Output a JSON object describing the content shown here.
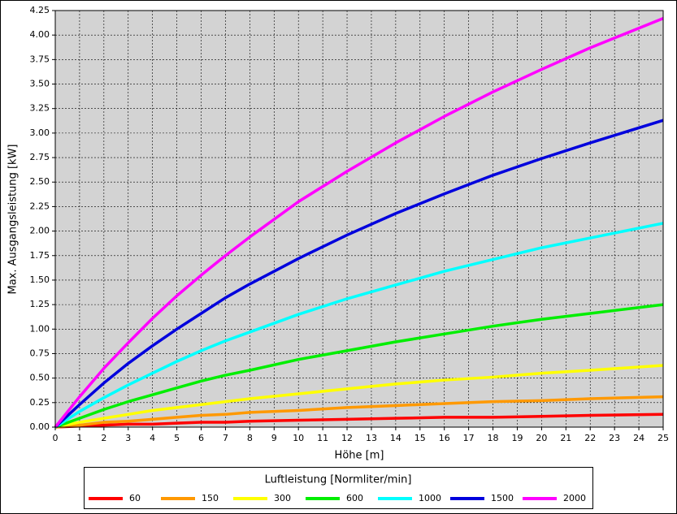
{
  "chart_data": {
    "type": "line",
    "xlabel": "Höhe [m]",
    "ylabel": "Max. Ausgangsleistung [kW]",
    "legend_title": "Luftleistung [Normliter/min]",
    "legend": "bottom",
    "grid": true,
    "x": [
      0,
      1,
      2,
      3,
      4,
      5,
      6,
      7,
      8,
      10,
      12,
      14,
      16,
      18,
      20,
      22,
      25
    ],
    "xlim": [
      0,
      25
    ],
    "xticks": [
      0,
      1,
      2,
      3,
      4,
      5,
      6,
      7,
      8,
      9,
      10,
      11,
      12,
      13,
      14,
      15,
      16,
      17,
      18,
      19,
      20,
      21,
      22,
      23,
      24,
      25
    ],
    "ylim": [
      0,
      4.25
    ],
    "yticks": [
      {
        "value": 0,
        "label": "0.00"
      },
      {
        "value": 0.25,
        "label": "0.25"
      },
      {
        "value": 0.5,
        "label": "0.50"
      },
      {
        "value": 0.75,
        "label": "0.75"
      },
      {
        "value": 1,
        "label": "1.00"
      },
      {
        "value": 1.25,
        "label": "1.25"
      },
      {
        "value": 1.5,
        "label": "1.50"
      },
      {
        "value": 1.75,
        "label": "1.75"
      },
      {
        "value": 2,
        "label": "2.00"
      },
      {
        "value": 2.25,
        "label": "2.25"
      },
      {
        "value": 2.5,
        "label": "2.50"
      },
      {
        "value": 2.75,
        "label": "2.75"
      },
      {
        "value": 3,
        "label": "3.00"
      },
      {
        "value": 3.25,
        "label": "3.25"
      },
      {
        "value": 3.5,
        "label": "3.50"
      },
      {
        "value": 3.75,
        "label": "3.75"
      },
      {
        "value": 4,
        "label": "4.00"
      },
      {
        "value": 4.25,
        "label": "4.25"
      }
    ],
    "series": [
      {
        "name": "60",
        "color": "#ff0000",
        "values": [
          0,
          0.01,
          0.02,
          0.03,
          0.03,
          0.04,
          0.05,
          0.05,
          0.06,
          0.07,
          0.08,
          0.09,
          0.1,
          0.1,
          0.11,
          0.12,
          0.13
        ]
      },
      {
        "name": "150",
        "color": "#ff9900",
        "values": [
          0,
          0.02,
          0.05,
          0.06,
          0.08,
          0.1,
          0.12,
          0.13,
          0.15,
          0.17,
          0.2,
          0.22,
          0.24,
          0.26,
          0.27,
          0.29,
          0.31
        ]
      },
      {
        "name": "300",
        "color": "#ffff00",
        "values": [
          0,
          0.05,
          0.09,
          0.13,
          0.17,
          0.2,
          0.23,
          0.26,
          0.29,
          0.34,
          0.39,
          0.44,
          0.48,
          0.51,
          0.55,
          0.58,
          0.63
        ]
      },
      {
        "name": "600",
        "color": "#00ee00",
        "values": [
          0,
          0.09,
          0.18,
          0.26,
          0.33,
          0.4,
          0.47,
          0.53,
          0.58,
          0.69,
          0.78,
          0.87,
          0.95,
          1.03,
          1.1,
          1.16,
          1.25
        ]
      },
      {
        "name": "1000",
        "color": "#00ffff",
        "values": [
          0,
          0.16,
          0.3,
          0.43,
          0.55,
          0.67,
          0.78,
          0.88,
          0.97,
          1.15,
          1.31,
          1.45,
          1.59,
          1.71,
          1.83,
          1.93,
          2.08
        ]
      },
      {
        "name": "1500",
        "color": "#0000dd",
        "values": [
          0,
          0.23,
          0.45,
          0.65,
          0.83,
          1.0,
          1.16,
          1.32,
          1.46,
          1.72,
          1.96,
          2.18,
          2.38,
          2.57,
          2.74,
          2.9,
          3.13
        ]
      },
      {
        "name": "2000",
        "color": "#ff00ff",
        "values": [
          0,
          0.31,
          0.6,
          0.86,
          1.11,
          1.34,
          1.55,
          1.75,
          1.94,
          2.3,
          2.61,
          2.9,
          3.17,
          3.42,
          3.65,
          3.87,
          4.17
        ]
      }
    ]
  }
}
